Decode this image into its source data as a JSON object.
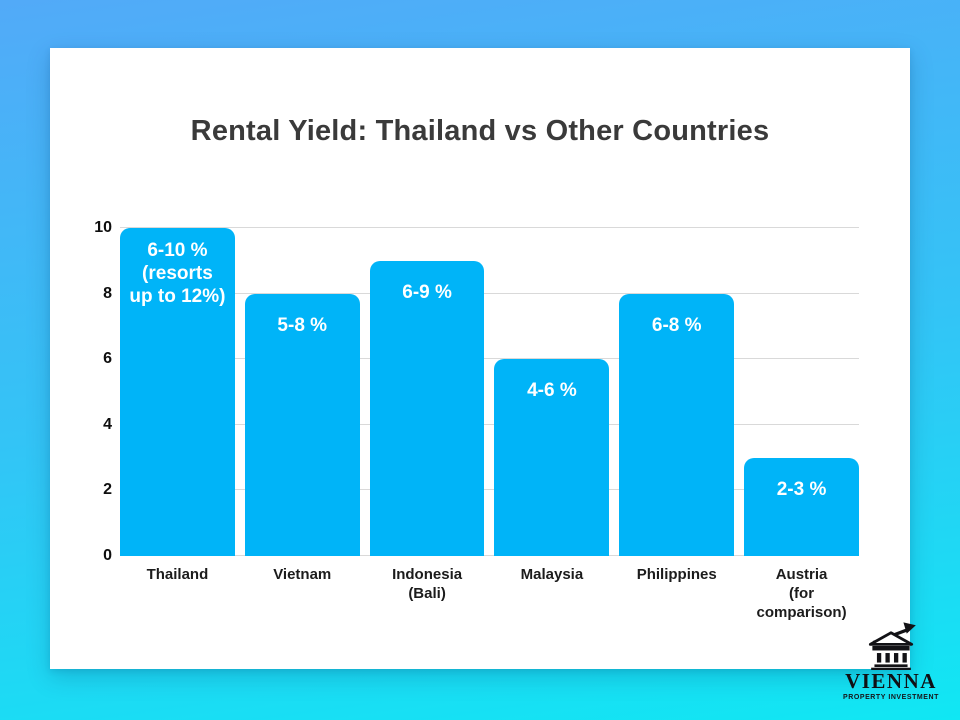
{
  "title": "Rental Yield: Thailand vs Other Countries",
  "chart_data": {
    "type": "bar",
    "title": "Rental Yield: Thailand vs Other Countries",
    "categories": [
      [
        "Thailand"
      ],
      [
        "Vietnam"
      ],
      [
        "Indonesia",
        "(Bali)"
      ],
      [
        "Malaysia"
      ],
      [
        "Philippines"
      ],
      [
        "Austria",
        "(for comparison)"
      ]
    ],
    "values": [
      10,
      8,
      9,
      6,
      8,
      3
    ],
    "bar_labels": [
      [
        "6-10 %",
        "(resorts",
        "up to 12%)"
      ],
      [
        "5-8 %"
      ],
      [
        "6-9 %"
      ],
      [
        "4-6 %"
      ],
      [
        "6-8 %"
      ],
      [
        "2-3 %"
      ]
    ],
    "ylabel": "",
    "xlabel": "",
    "ylim": [
      0,
      10
    ],
    "yticks": [
      0,
      2,
      4,
      6,
      8,
      10
    ],
    "grid": true,
    "legend": false,
    "bar_color": "#00b4f8",
    "bar_label_color": "#ffffff"
  },
  "logo": {
    "brand": "VIENNA",
    "tagline": "PROPERTY INVESTMENT",
    "icon": "classical-building-growth-arrow-icon"
  },
  "colors": {
    "background_top": "#52aaf8",
    "background_bottom": "#10e7f3",
    "card": "#ffffff",
    "bar": "#00b4f8",
    "gridline": "#d9d9d9",
    "title_text": "#3a3a3a",
    "axis_text": "#1c1c1c"
  }
}
